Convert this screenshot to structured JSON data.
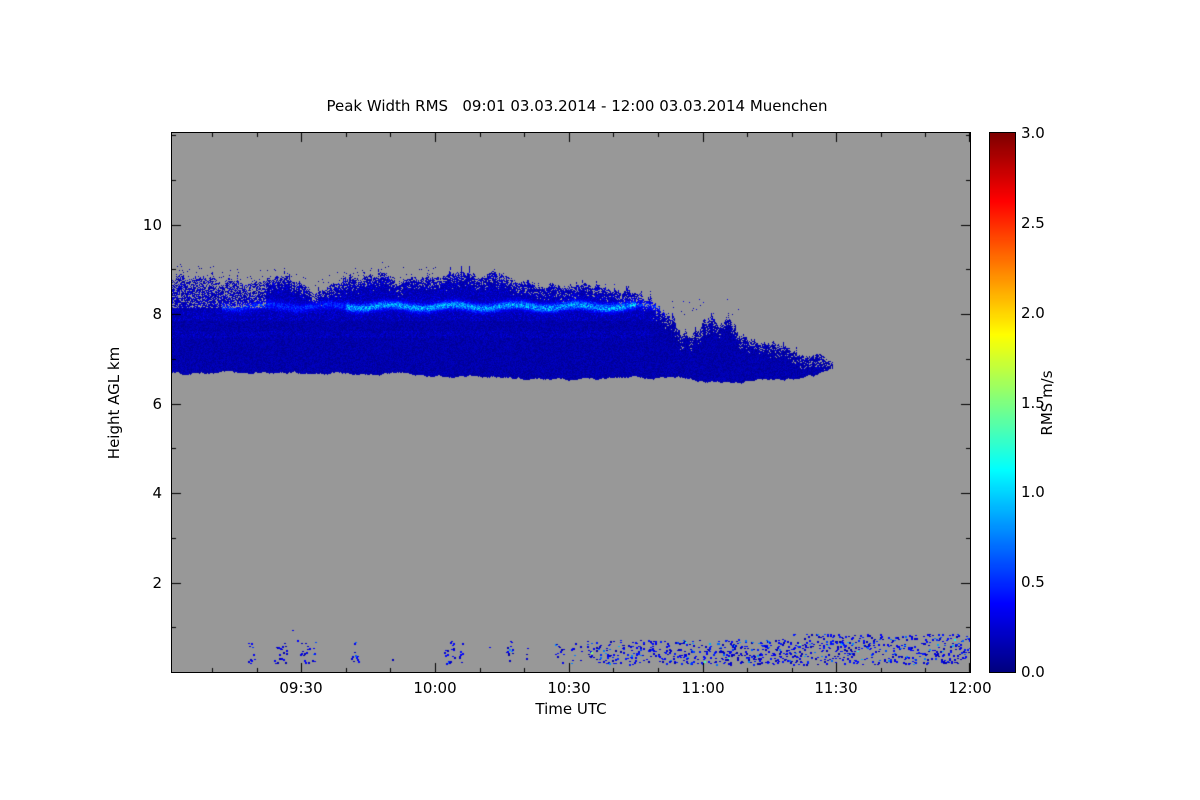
{
  "colors": {
    "plot_bg": "#989898",
    "frame": "#000000",
    "page_bg": "#ffffff",
    "cloud_dark_blue": "#0000a8",
    "streak_light_blue": "#0050ff"
  },
  "chart_data": {
    "type": "heatmap",
    "title": "Peak Width RMS   09:01 03.03.2014 - 12:00 03.03.2014 Muenchen",
    "xlabel": "Time UTC",
    "ylabel": "Height AGL km",
    "value_label": "RMS m/s",
    "x_range_minutes": [
      541,
      720
    ],
    "x_tick_minutes": [
      570,
      600,
      630,
      660,
      690,
      720
    ],
    "x_tick_labels": [
      "09:30",
      "10:00",
      "10:30",
      "11:00",
      "11:30",
      "12:00"
    ],
    "x_minor_tick_step_minutes": 10,
    "y_range_km": [
      0,
      12.05
    ],
    "y_tick_km": [
      2,
      4,
      6,
      8,
      10
    ],
    "y_tick_labels": [
      "2",
      "4",
      "6",
      "8",
      "10"
    ],
    "y_minor_tick_step_km": 1,
    "value_range": [
      0.0,
      3.0
    ],
    "colorbar_tick_values": [
      0.0,
      0.5,
      1.0,
      1.5,
      2.0,
      2.5,
      3.0
    ],
    "colorbar_tick_labels": [
      "0.0",
      "0.5",
      "1.0",
      "1.5",
      "2.0",
      "2.5",
      "3.0"
    ],
    "colormap": "rainbow (dark blue -> blue -> cyan -> green -> yellow -> orange -> red -> dark red)",
    "background": "no-data gray",
    "grid": false,
    "features": {
      "cloud_layer": {
        "description": "Elevated cloud layer of low RMS (~0.05-0.45 m/s, dark blue) from 09:01 to ~11:28, base ~6.5-6.7 km, ragged top ~8.5-9.0 km dropping to ~7.5 km after 10:50 and tapering to a point near 11:30",
        "time_span_minutes": [
          541,
          689
        ],
        "top_km_points": [
          [
            541,
            8.8
          ],
          [
            552,
            8.9
          ],
          [
            565,
            8.75
          ],
          [
            572,
            8.55
          ],
          [
            578,
            8.7
          ],
          [
            590,
            8.9
          ],
          [
            600,
            8.85
          ],
          [
            612,
            8.8
          ],
          [
            622,
            8.72
          ],
          [
            632,
            8.62
          ],
          [
            640,
            8.55
          ],
          [
            648,
            8.45
          ],
          [
            651,
            8.15
          ],
          [
            655,
            7.85
          ],
          [
            660,
            7.7
          ],
          [
            668,
            7.55
          ],
          [
            675,
            7.35
          ],
          [
            681,
            7.1
          ],
          [
            686,
            6.95
          ],
          [
            689,
            6.82
          ]
        ],
        "base_km_points": [
          [
            541,
            6.72
          ],
          [
            565,
            6.7
          ],
          [
            590,
            6.68
          ],
          [
            612,
            6.62
          ],
          [
            628,
            6.58
          ],
          [
            645,
            6.6
          ],
          [
            658,
            6.55
          ],
          [
            668,
            6.5
          ],
          [
            678,
            6.55
          ],
          [
            685,
            6.65
          ],
          [
            689,
            6.78
          ]
        ],
        "value_mean_ms": 0.15,
        "bright_streak": {
          "description": "Brighter blue streak (~0.5-0.9 m/s) near cloud top",
          "time_span_minutes": [
            552,
            652
          ],
          "strong_span_minutes": [
            580,
            645
          ],
          "height_km": 8.18,
          "thickness_km": 0.18,
          "value_ms": 0.65
        }
      },
      "surface_noise": {
        "description": "Intermittent near-surface returns below ~0.9 km; sparse speckle before ~10:30, nearly continuous noisy band afterwards, RMS ~0.1-0.9 m/s",
        "height_range_km": [
          0.15,
          0.85
        ],
        "sparse_span_minutes": [
          546,
          634
        ],
        "dense_span_minutes": [
          634,
          720
        ],
        "value_range_ms": [
          0.1,
          0.9
        ],
        "isolated_specks_minutes_km": [
          [
            568,
            0.95
          ],
          [
            569,
            0.72
          ],
          [
            604,
            0.5
          ],
          [
            612,
            0.55
          ]
        ]
      }
    }
  }
}
